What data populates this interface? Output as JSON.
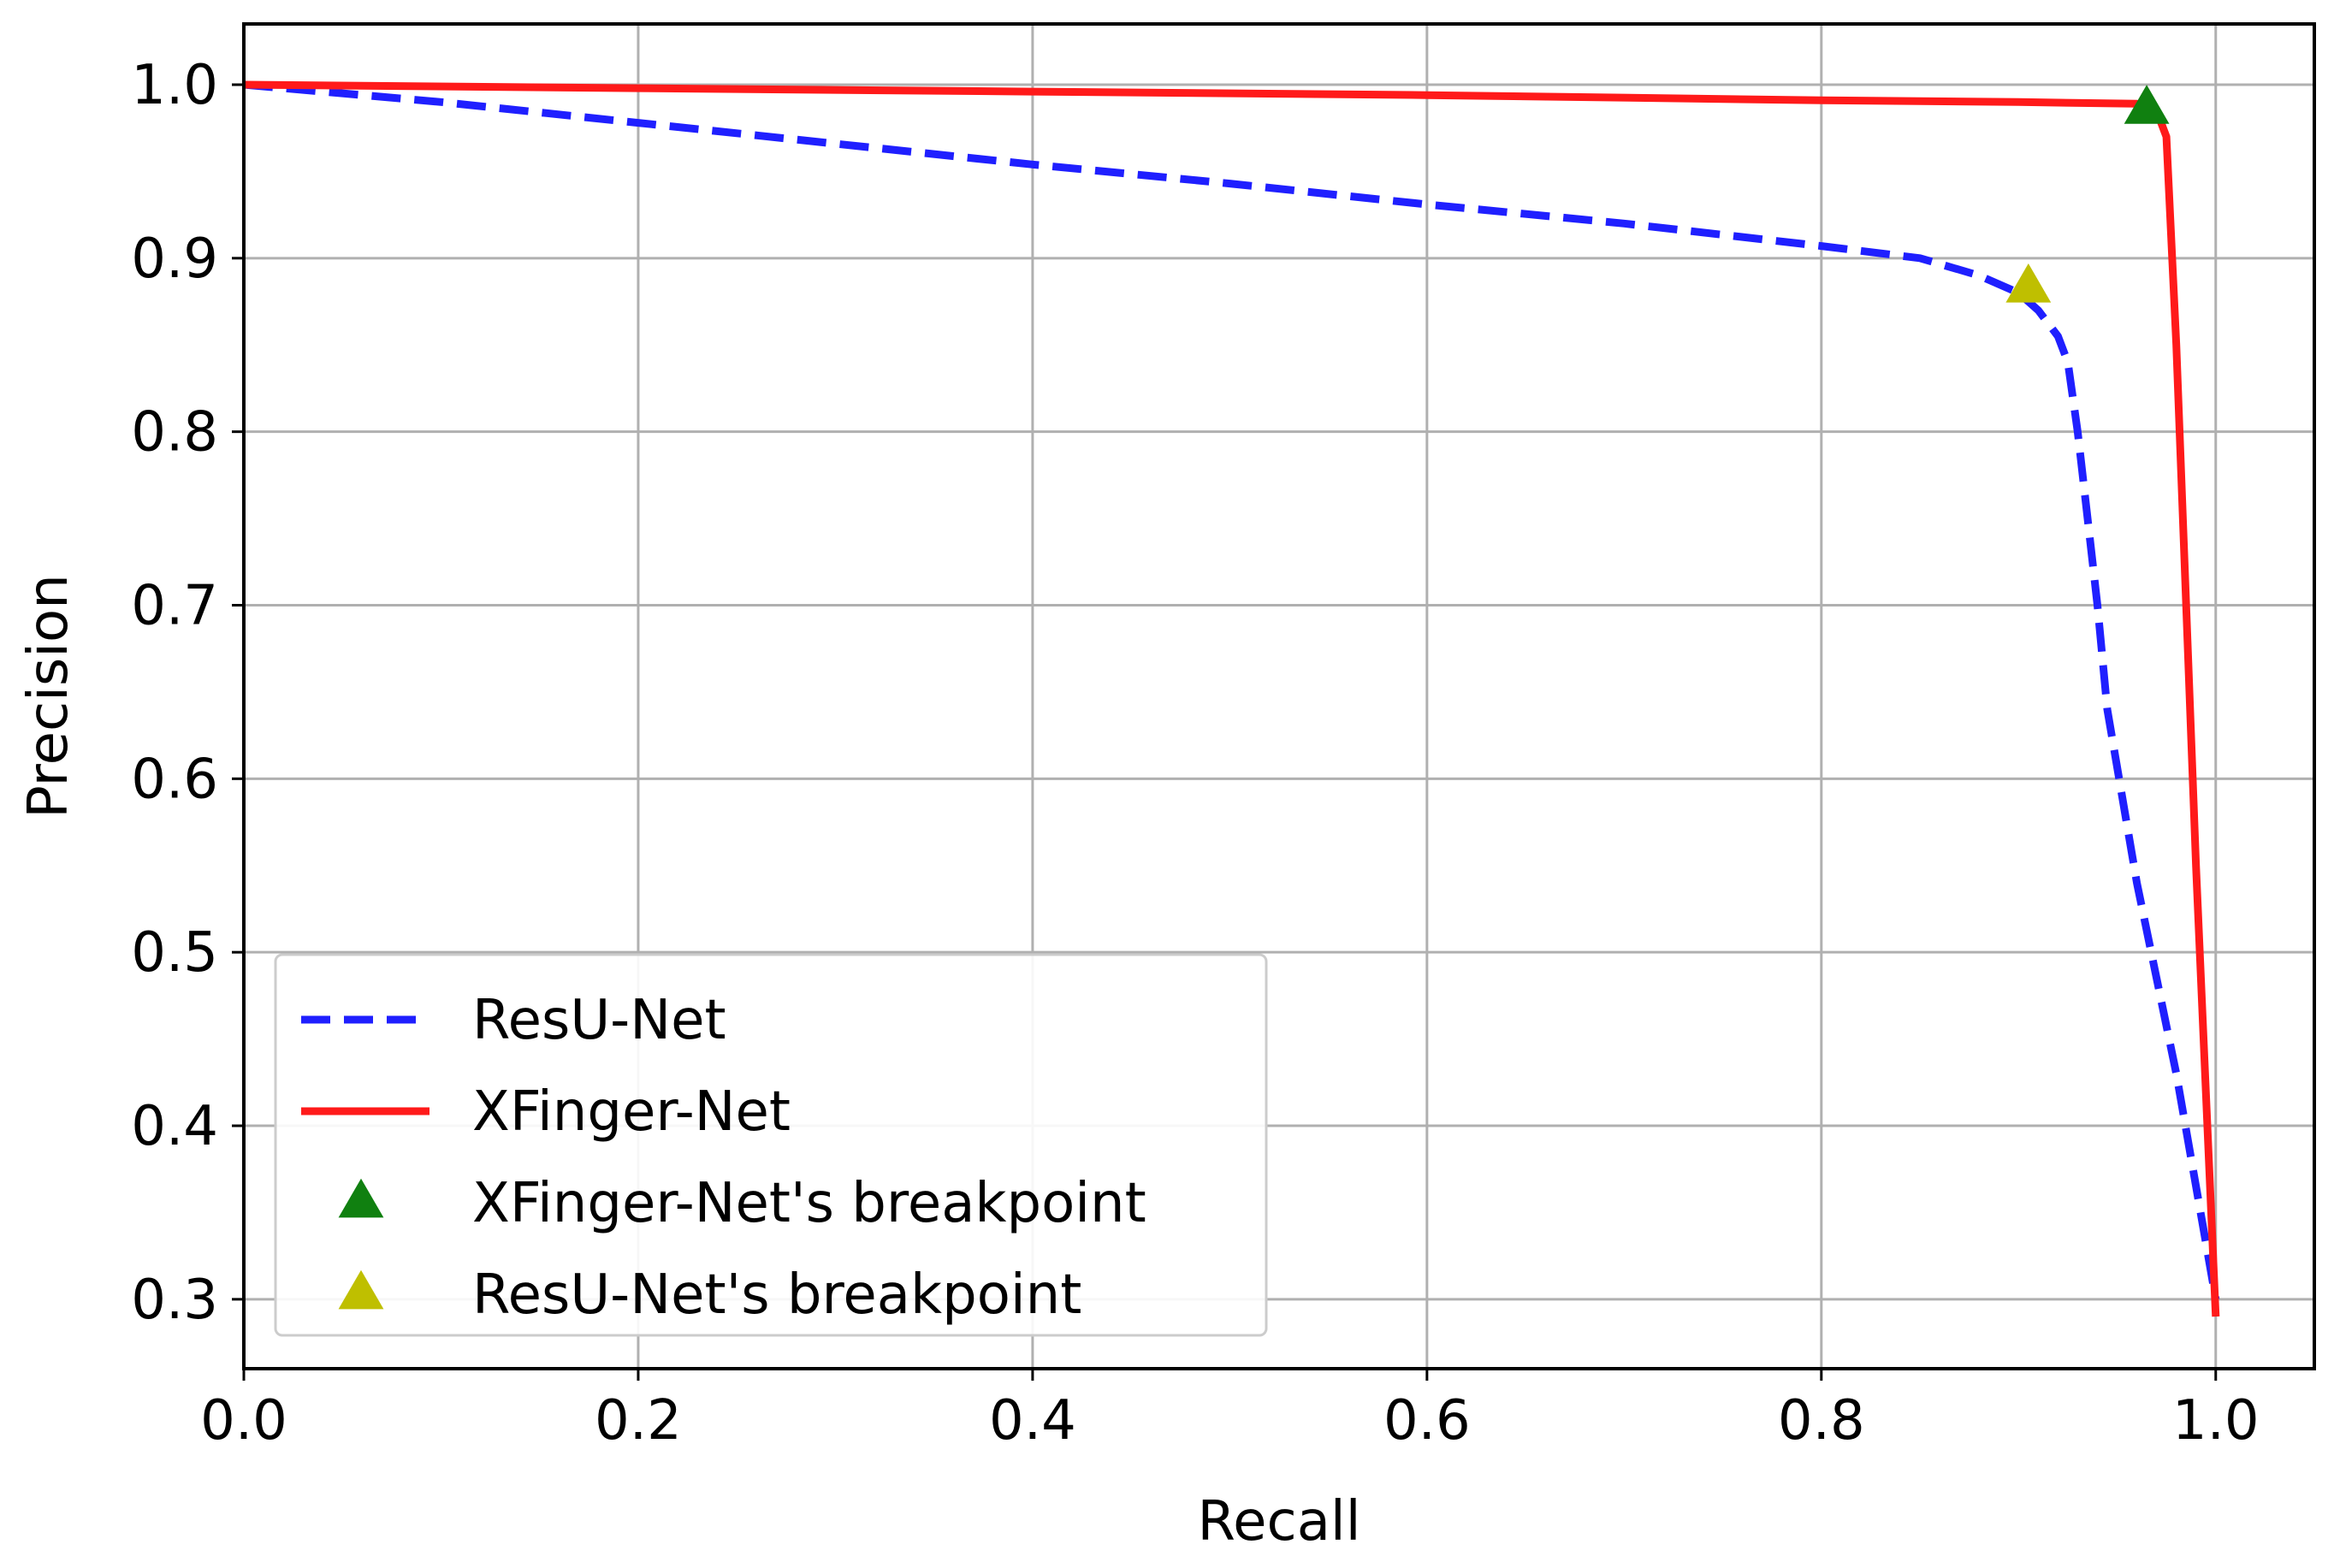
{
  "chart_data": {
    "type": "line",
    "xlabel": "Recall",
    "ylabel": "Precision",
    "xlim": [
      0.0,
      1.05
    ],
    "ylim": [
      0.26,
      1.035
    ],
    "x_ticks": [
      {
        "value": 0.0,
        "label": "0.0"
      },
      {
        "value": 0.2,
        "label": "0.2"
      },
      {
        "value": 0.4,
        "label": "0.4"
      },
      {
        "value": 0.6,
        "label": "0.6"
      },
      {
        "value": 0.8,
        "label": "0.8"
      },
      {
        "value": 1.0,
        "label": "1.0"
      }
    ],
    "y_ticks": [
      {
        "value": 0.3,
        "label": "0.3"
      },
      {
        "value": 0.4,
        "label": "0.4"
      },
      {
        "value": 0.5,
        "label": "0.5"
      },
      {
        "value": 0.6,
        "label": "0.6"
      },
      {
        "value": 0.7,
        "label": "0.7"
      },
      {
        "value": 0.8,
        "label": "0.8"
      },
      {
        "value": 0.9,
        "label": "0.9"
      },
      {
        "value": 1.0,
        "label": "1.0"
      }
    ],
    "grid": true,
    "legend_position": "lower-left",
    "series": [
      {
        "name": "ResU-Net",
        "kind": "line",
        "style": "dashed",
        "color": "#1f1fff",
        "x": [
          0.0,
          0.1,
          0.2,
          0.3,
          0.4,
          0.5,
          0.6,
          0.7,
          0.8,
          0.85,
          0.88,
          0.9,
          0.91,
          0.92,
          0.925,
          0.93,
          0.935,
          0.94,
          0.945,
          0.96,
          0.98,
          1.0
        ],
        "y": [
          1.0,
          0.99,
          0.978,
          0.966,
          0.954,
          0.943,
          0.931,
          0.92,
          0.907,
          0.9,
          0.89,
          0.88,
          0.87,
          0.855,
          0.84,
          0.8,
          0.75,
          0.7,
          0.64,
          0.54,
          0.43,
          0.3
        ]
      },
      {
        "name": "XFinger-Net",
        "kind": "line",
        "style": "solid",
        "color": "#ff1a1a",
        "x": [
          0.0,
          0.2,
          0.4,
          0.6,
          0.8,
          0.9,
          0.96,
          0.97,
          0.975,
          0.98,
          0.985,
          0.99,
          0.995,
          1.0
        ],
        "y": [
          1.0,
          0.998,
          0.996,
          0.994,
          0.991,
          0.99,
          0.989,
          0.985,
          0.97,
          0.85,
          0.7,
          0.55,
          0.42,
          0.29
        ]
      },
      {
        "name": "XFinger-Net's breakpoint",
        "kind": "marker",
        "marker": "triangle",
        "color": "#108010",
        "x": [
          0.965
        ],
        "y": [
          0.986
        ]
      },
      {
        "name": "ResU-Net's breakpoint",
        "kind": "marker",
        "marker": "triangle",
        "color": "#bfbf00",
        "x": [
          0.905
        ],
        "y": [
          0.883
        ]
      }
    ]
  }
}
